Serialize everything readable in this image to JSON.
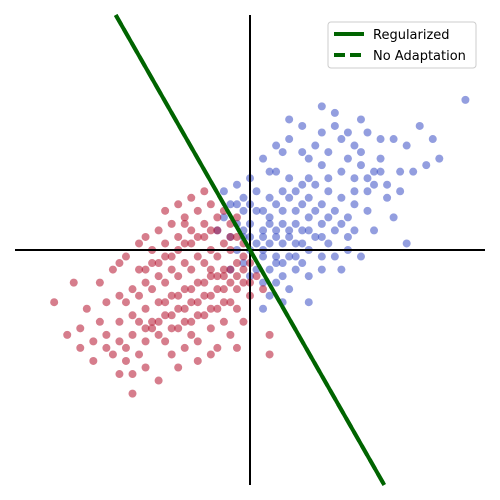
{
  "chart_data": {
    "type": "scatter",
    "xlim": [
      -3.6,
      3.6
    ],
    "ylim": [
      -3.6,
      3.6
    ],
    "axes_through_origin": true,
    "grid": false,
    "legend_placement": "top-right",
    "series": [
      {
        "color": "#3a4fc4",
        "marker": "circle",
        "points": [
          [
            3.3,
            2.3
          ],
          [
            2.6,
            1.9
          ],
          [
            2.5,
            1.2
          ],
          [
            2.9,
            1.4
          ],
          [
            2.2,
            1.7
          ],
          [
            2.0,
            1.7
          ],
          [
            1.8,
            1.8
          ],
          [
            1.4,
            1.7
          ],
          [
            1.2,
            1.5
          ],
          [
            1.5,
            1.4
          ],
          [
            1.7,
            1.3
          ],
          [
            2.0,
            1.4
          ],
          [
            2.3,
            1.2
          ],
          [
            2.1,
            1.0
          ],
          [
            1.9,
            1.0
          ],
          [
            1.6,
            1.1
          ],
          [
            1.4,
            1.2
          ],
          [
            1.1,
            1.3
          ],
          [
            0.9,
            1.4
          ],
          [
            0.8,
            1.5
          ],
          [
            0.5,
            1.5
          ],
          [
            0.2,
            1.4
          ],
          [
            0.4,
            1.2
          ],
          [
            0.6,
            1.1
          ],
          [
            0.8,
            1.0
          ],
          [
            1.0,
            1.0
          ],
          [
            1.2,
            0.9
          ],
          [
            1.4,
            0.8
          ],
          [
            1.6,
            0.7
          ],
          [
            1.8,
            0.6
          ],
          [
            1.5,
            0.5
          ],
          [
            1.3,
            0.6
          ],
          [
            1.1,
            0.7
          ],
          [
            0.9,
            0.8
          ],
          [
            0.7,
            0.9
          ],
          [
            0.5,
            0.9
          ],
          [
            0.3,
            0.8
          ],
          [
            0.1,
            0.9
          ],
          [
            -0.1,
            0.8
          ],
          [
            -0.2,
            1.0
          ],
          [
            -0.4,
            0.9
          ],
          [
            -0.3,
            0.7
          ],
          [
            -0.1,
            0.6
          ],
          [
            0.1,
            0.6
          ],
          [
            0.3,
            0.5
          ],
          [
            0.5,
            0.6
          ],
          [
            0.7,
            0.6
          ],
          [
            0.9,
            0.5
          ],
          [
            1.1,
            0.4
          ],
          [
            1.3,
            0.3
          ],
          [
            1.5,
            0.2
          ],
          [
            1.2,
            0.1
          ],
          [
            1.0,
            0.2
          ],
          [
            0.8,
            0.3
          ],
          [
            0.6,
            0.3
          ],
          [
            0.4,
            0.3
          ],
          [
            0.2,
            0.3
          ],
          [
            0.0,
            0.4
          ],
          [
            -0.2,
            0.4
          ],
          [
            -0.4,
            0.5
          ],
          [
            -0.5,
            0.3
          ],
          [
            -0.3,
            0.2
          ],
          [
            -0.1,
            0.2
          ],
          [
            0.1,
            0.1
          ],
          [
            0.3,
            0.1
          ],
          [
            0.5,
            0.1
          ],
          [
            0.7,
            0.1
          ],
          [
            0.9,
            0.0
          ],
          [
            1.1,
            -0.1
          ],
          [
            0.8,
            -0.2
          ],
          [
            0.6,
            -0.1
          ],
          [
            0.4,
            -0.1
          ],
          [
            0.2,
            -0.1
          ],
          [
            0.0,
            0.0
          ],
          [
            -0.2,
            0.0
          ],
          [
            -0.1,
            -0.2
          ],
          [
            0.1,
            -0.3
          ],
          [
            0.3,
            -0.3
          ],
          [
            0.5,
            -0.4
          ],
          [
            0.7,
            -0.3
          ],
          [
            0.9,
            -0.4
          ],
          [
            0.6,
            -0.6
          ],
          [
            0.4,
            -0.5
          ],
          [
            0.2,
            -0.5
          ],
          [
            0.0,
            -0.4
          ],
          [
            0.3,
            -0.7
          ],
          [
            0.5,
            -0.8
          ],
          [
            0.2,
            -0.9
          ],
          [
            0.9,
            -0.8
          ],
          [
            0.7,
            -0.1
          ],
          [
            2.4,
            1.6
          ],
          [
            2.8,
            1.7
          ],
          [
            2.7,
            1.3
          ],
          [
            1.9,
            1.2
          ],
          [
            1.7,
            1.5
          ],
          [
            1.3,
            1.9
          ],
          [
            1.0,
            1.6
          ],
          [
            0.6,
            1.7
          ],
          [
            0.3,
            1.2
          ],
          [
            0.0,
            1.1
          ],
          [
            0.4,
            1.6
          ],
          [
            0.9,
            1.1
          ],
          [
            1.2,
            1.1
          ],
          [
            1.6,
            0.9
          ],
          [
            1.8,
            0.9
          ],
          [
            2.1,
            0.8
          ],
          [
            2.3,
            0.9
          ],
          [
            1.4,
            0.4
          ],
          [
            1.2,
            0.5
          ],
          [
            1.0,
            0.6
          ],
          [
            0.8,
            0.7
          ],
          [
            0.6,
            0.8
          ],
          [
            0.4,
            0.7
          ],
          [
            0.2,
            0.6
          ],
          [
            0.0,
            0.7
          ],
          [
            -0.2,
            0.7
          ],
          [
            0.3,
            0.4
          ],
          [
            0.5,
            0.4
          ],
          [
            0.7,
            0.4
          ],
          [
            0.9,
            0.3
          ],
          [
            1.1,
            0.2
          ],
          [
            0.8,
            0.1
          ],
          [
            0.6,
            0.2
          ],
          [
            0.4,
            0.2
          ],
          [
            0.2,
            0.2
          ],
          [
            -0.3,
            -0.3
          ],
          [
            0.4,
            -0.2
          ],
          [
            0.5,
            -0.2
          ],
          [
            0.2,
            0.0
          ],
          [
            0.0,
            0.2
          ],
          [
            -0.1,
            0.3
          ],
          [
            1.4,
            -0.3
          ],
          [
            2.4,
            0.1
          ],
          [
            2.2,
            0.5
          ],
          [
            1.9,
            0.3
          ],
          [
            1.6,
            0.3
          ],
          [
            1.3,
            -0.1
          ],
          [
            1.1,
            -0.3
          ],
          [
            1.7,
            -0.1
          ],
          [
            1.5,
            0.0
          ],
          [
            2.0,
            1.2
          ],
          [
            1.8,
            1.1
          ],
          [
            1.6,
            1.6
          ],
          [
            1.5,
            1.8
          ],
          [
            1.1,
            1.8
          ],
          [
            0.8,
            1.9
          ],
          [
            0.6,
            2.0
          ],
          [
            1.1,
            2.2
          ],
          [
            1.3,
            2.1
          ],
          [
            1.7,
            2.0
          ]
        ]
      },
      {
        "color": "#b5122d",
        "marker": "circle",
        "points": [
          [
            -3.0,
            -0.8
          ],
          [
            -2.6,
            -1.2
          ],
          [
            -2.3,
            -1.1
          ],
          [
            -2.2,
            -1.5
          ],
          [
            -2.0,
            -1.4
          ],
          [
            -1.9,
            -1.7
          ],
          [
            -1.8,
            -1.3
          ],
          [
            -1.7,
            -1.6
          ],
          [
            -1.6,
            -1.4
          ],
          [
            -1.5,
            -1.1
          ],
          [
            -1.4,
            -1.3
          ],
          [
            -1.3,
            -1.0
          ],
          [
            -1.2,
            -1.2
          ],
          [
            -1.1,
            -0.9
          ],
          [
            -1.0,
            -1.1
          ],
          [
            -0.9,
            -0.8
          ],
          [
            -0.8,
            -1.0
          ],
          [
            -0.7,
            -0.7
          ],
          [
            -0.6,
            -0.9
          ],
          [
            -0.5,
            -0.6
          ],
          [
            -0.4,
            -0.8
          ],
          [
            -0.3,
            -0.5
          ],
          [
            -0.2,
            -0.6
          ],
          [
            -0.1,
            -0.3
          ],
          [
            -0.2,
            -0.2
          ],
          [
            -0.4,
            -0.3
          ],
          [
            -0.6,
            -0.4
          ],
          [
            -0.8,
            -0.5
          ],
          [
            -1.0,
            -0.6
          ],
          [
            -1.2,
            -0.7
          ],
          [
            -1.4,
            -0.8
          ],
          [
            -1.6,
            -0.9
          ],
          [
            -1.8,
            -1.0
          ],
          [
            -2.0,
            -1.1
          ],
          [
            -1.9,
            -0.8
          ],
          [
            -1.7,
            -0.7
          ],
          [
            -1.5,
            -0.6
          ],
          [
            -1.3,
            -0.5
          ],
          [
            -1.1,
            -0.4
          ],
          [
            -0.9,
            -0.3
          ],
          [
            -0.7,
            -0.2
          ],
          [
            -0.5,
            -0.1
          ],
          [
            -0.3,
            0.0
          ],
          [
            -0.1,
            0.1
          ],
          [
            -0.2,
            0.2
          ],
          [
            -0.4,
            0.1
          ],
          [
            -0.6,
            0.0
          ],
          [
            -0.8,
            -0.1
          ],
          [
            -1.0,
            -0.2
          ],
          [
            -1.2,
            -0.3
          ],
          [
            -1.4,
            -0.4
          ],
          [
            -1.6,
            -0.5
          ],
          [
            -1.8,
            -0.6
          ],
          [
            -2.0,
            -0.7
          ],
          [
            -2.2,
            -0.8
          ],
          [
            -1.7,
            -0.3
          ],
          [
            -1.5,
            -0.2
          ],
          [
            -1.3,
            -0.1
          ],
          [
            -1.1,
            0.0
          ],
          [
            -0.9,
            0.1
          ],
          [
            -0.7,
            0.2
          ],
          [
            -0.5,
            0.3
          ],
          [
            -0.3,
            0.4
          ],
          [
            -0.5,
            0.5
          ],
          [
            -0.7,
            0.4
          ],
          [
            -0.9,
            0.3
          ],
          [
            -1.1,
            0.2
          ],
          [
            -1.3,
            0.1
          ],
          [
            -1.5,
            0.0
          ],
          [
            -1.6,
            0.2
          ],
          [
            -1.4,
            0.3
          ],
          [
            -1.2,
            0.4
          ],
          [
            -1.0,
            0.5
          ],
          [
            -0.8,
            0.6
          ],
          [
            -0.6,
            0.7
          ],
          [
            -1.1,
            0.7
          ],
          [
            -1.3,
            0.6
          ],
          [
            -0.9,
            0.8
          ],
          [
            -0.7,
            0.9
          ],
          [
            -1.0,
            0.4
          ],
          [
            -0.2,
            -0.9
          ],
          [
            -0.4,
            -1.1
          ],
          [
            -0.6,
            -1.2
          ],
          [
            -0.8,
            -1.4
          ],
          [
            -1.0,
            -1.5
          ],
          [
            -1.2,
            -1.6
          ],
          [
            -1.6,
            -1.8
          ],
          [
            -1.8,
            -1.9
          ],
          [
            -2.1,
            -1.6
          ],
          [
            -2.4,
            -1.4
          ],
          [
            -2.5,
            -0.9
          ],
          [
            -2.3,
            -0.5
          ],
          [
            -2.1,
            -0.3
          ],
          [
            -1.9,
            -0.1
          ],
          [
            -1.7,
            0.1
          ],
          [
            -2.0,
            -0.2
          ],
          [
            -2.7,
            -0.5
          ],
          [
            -2.8,
            -1.3
          ],
          [
            -2.4,
            -1.7
          ],
          [
            -2.0,
            -1.9
          ],
          [
            -1.8,
            -2.2
          ],
          [
            -1.4,
            -2.0
          ],
          [
            -1.1,
            -1.8
          ],
          [
            -0.8,
            -1.7
          ],
          [
            -0.5,
            -1.5
          ],
          [
            -0.3,
            -1.3
          ],
          [
            -0.1,
            -1.1
          ],
          [
            0.3,
            -1.3
          ],
          [
            0.3,
            -1.6
          ],
          [
            -0.2,
            -1.5
          ],
          [
            -0.6,
            -1.6
          ],
          [
            -0.9,
            -1.3
          ],
          [
            -1.3,
            -1.4
          ],
          [
            -1.5,
            -1.2
          ],
          [
            -1.7,
            -1.1
          ],
          [
            -0.3,
            -0.8
          ],
          [
            -0.5,
            -0.9
          ],
          [
            -0.7,
            -1.0
          ],
          [
            -0.9,
            -1.1
          ],
          [
            -1.1,
            -1.2
          ],
          [
            -1.3,
            -0.8
          ],
          [
            -1.1,
            -0.7
          ],
          [
            -0.9,
            -0.6
          ],
          [
            -0.7,
            -0.5
          ],
          [
            -0.5,
            -0.4
          ],
          [
            -0.3,
            -0.3
          ],
          [
            -0.1,
            -0.5
          ],
          [
            0.0,
            -0.7
          ],
          [
            0.2,
            -0.6
          ],
          [
            0.1,
            -0.4
          ],
          [
            -0.1,
            -0.1
          ],
          [
            -0.3,
            0.2
          ],
          [
            -0.6,
            0.3
          ],
          [
            -0.8,
            0.2
          ],
          [
            -1.0,
            0.1
          ],
          [
            -1.2,
            -0.1
          ],
          [
            -1.4,
            -0.2
          ],
          [
            -1.6,
            -0.3
          ],
          [
            -0.4,
            -0.6
          ],
          [
            -0.6,
            -0.7
          ],
          [
            -0.8,
            -0.8
          ],
          [
            -1.0,
            -0.9
          ],
          [
            -1.2,
            -1.0
          ],
          [
            -1.4,
            -1.1
          ],
          [
            -1.6,
            -1.2
          ],
          [
            -2.2,
            -1.3
          ],
          [
            -2.6,
            -1.5
          ],
          [
            -1.9,
            -1.5
          ],
          [
            -0.2,
            0.5
          ],
          [
            -0.4,
            0.6
          ],
          [
            -0.6,
            -0.3
          ],
          [
            -0.4,
            -0.4
          ],
          [
            -0.2,
            -0.4
          ],
          [
            0.0,
            -0.2
          ],
          [
            0.0,
            -0.5
          ]
        ]
      }
    ],
    "lines": [
      {
        "name": "Regularized",
        "color": "#006400",
        "style": "solid",
        "slope": -1.75,
        "intercept": 0.0
      },
      {
        "name": "No Adaptation",
        "color": "#006400",
        "style": "dashed",
        "slope": -1.75,
        "intercept": 0.0
      }
    ],
    "legend": [
      "Regularized",
      "No Adaptation"
    ]
  }
}
